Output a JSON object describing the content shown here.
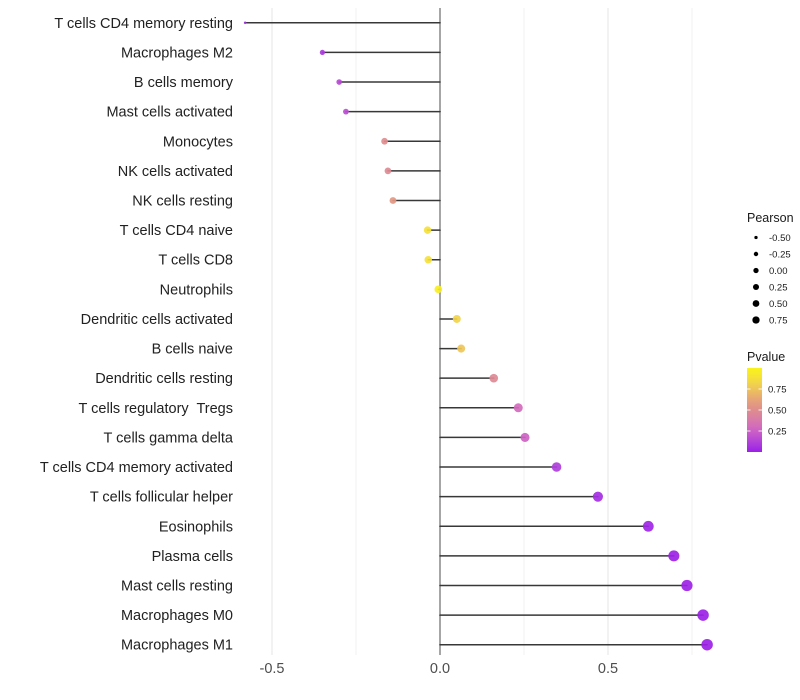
{
  "figure": {
    "background": "#ffffff"
  },
  "chart_data": {
    "type": "scatter",
    "subtype": "lollipop",
    "orientation": "horizontal",
    "title": "",
    "xlabel": "",
    "ylabel": "",
    "categories": [
      "T cells CD4 memory resting",
      "Macrophages M2",
      "B cells memory",
      "Mast cells activated",
      "Monocytes",
      "NK cells activated",
      "NK cells resting",
      "T cells CD4 naive",
      "T cells CD8",
      "Neutrophils",
      "Dendritic cells activated",
      "B cells naive",
      "Dendritic cells resting",
      "T cells regulatory  Tregs",
      "T cells gamma delta",
      "T cells CD4 memory activated",
      "T cells follicular helper",
      "Eosinophils",
      "Plasma cells",
      "Mast cells resting",
      "Macrophages M0",
      "Macrophages M1"
    ],
    "series": [
      {
        "name": "Pearson",
        "values": [
          -0.58,
          -0.35,
          -0.3,
          -0.28,
          -0.165,
          -0.155,
          -0.14,
          -0.037,
          -0.035,
          -0.005,
          0.05,
          0.063,
          0.16,
          0.233,
          0.253,
          0.347,
          0.47,
          0.62,
          0.696,
          0.735,
          0.783,
          0.795
        ]
      },
      {
        "name": "Pvalue",
        "values": [
          0.04,
          0.09,
          0.15,
          0.17,
          0.5,
          0.48,
          0.56,
          0.88,
          0.88,
          0.97,
          0.82,
          0.76,
          0.47,
          0.3,
          0.26,
          0.11,
          0.05,
          0.02,
          0.01,
          0.01,
          0.005,
          0.005
        ]
      }
    ],
    "x_axis": {
      "range": [
        -0.655,
        0.862
      ],
      "tick_values": [
        -0.5,
        0.0,
        0.5
      ],
      "tick_labels": [
        "-0.5",
        "0.0",
        "0.5"
      ],
      "major_gridlines": [
        -0.5,
        0.0,
        0.5
      ],
      "minor_gridlines": [
        -0.25,
        0.25,
        0.75
      ],
      "zero_line": 0
    },
    "grid": true,
    "legend_position": "right",
    "legend_size": {
      "title": "Pearson",
      "entry_labels": [
        "-0.50",
        "-0.25",
        "0.00",
        "0.25",
        "0.50",
        "0.75"
      ],
      "entry_values": [
        -0.5,
        -0.25,
        0.0,
        0.25,
        0.5,
        0.75
      ],
      "dot_color": "#000000"
    },
    "legend_color": {
      "title": "Pvalue",
      "tick_labels": [
        "0.75",
        "0.50",
        "0.25"
      ],
      "tick_values": [
        0.75,
        0.5,
        0.25
      ],
      "range": [
        0,
        1
      ],
      "gradient_stops": [
        {
          "p": 0.0,
          "color": "#9b20e8"
        },
        {
          "p": 0.1,
          "color": "#ad3cdc"
        },
        {
          "p": 0.2,
          "color": "#c355cd"
        },
        {
          "p": 0.3,
          "color": "#d26bbc"
        },
        {
          "p": 0.42,
          "color": "#da81a0"
        },
        {
          "p": 0.52,
          "color": "#e0908a"
        },
        {
          "p": 0.62,
          "color": "#e6a378"
        },
        {
          "p": 0.72,
          "color": "#ecbc62"
        },
        {
          "p": 0.82,
          "color": "#f1d44a"
        },
        {
          "p": 0.92,
          "color": "#f7e72e"
        },
        {
          "p": 1.0,
          "color": "#faf31c"
        }
      ]
    },
    "style_colors": {
      "stick": "#383838",
      "zero_line": "#828282",
      "grid_major": "#e9e9e9",
      "grid_minor": "#f4f4f4",
      "axis_text": "#4d4d4d",
      "category_text": "#212121",
      "legend_text": "#1a1a1a"
    }
  }
}
